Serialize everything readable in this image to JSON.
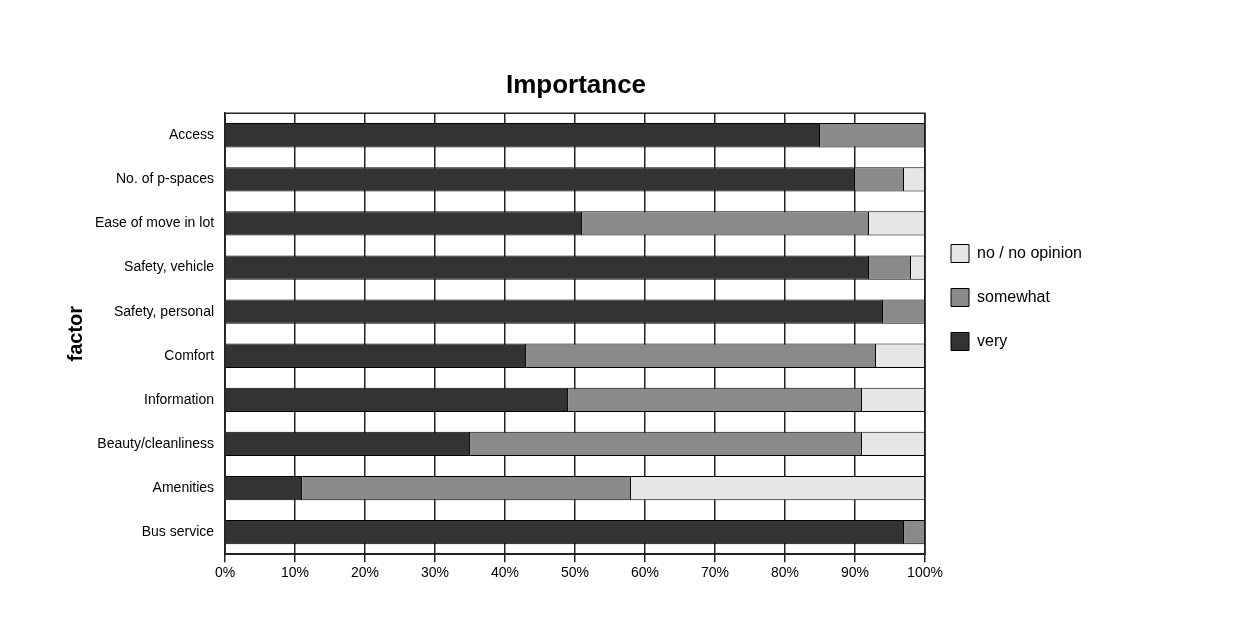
{
  "chart_data": {
    "type": "bar",
    "title": "Importance",
    "ylabel": "factor",
    "orientation": "horizontal",
    "stacked": true,
    "categories": [
      "Access",
      "No. of p-spaces",
      "Ease of move in lot",
      "Safety, vehicle",
      "Safety, personal",
      "Comfort",
      "Information",
      "Beauty/cleanliness",
      "Amenities",
      "Bus service"
    ],
    "series": [
      {
        "name": "very",
        "color": "#333333",
        "values": [
          85,
          90,
          51,
          92,
          94,
          43,
          49,
          35,
          11,
          97
        ]
      },
      {
        "name": "somewhat",
        "color": "#8a8a8a",
        "values": [
          15,
          7,
          41,
          6,
          6,
          50,
          42,
          56,
          47,
          3
        ]
      },
      {
        "name": "no / no opinion",
        "color": "#e6e6e6",
        "values": [
          0,
          3,
          8,
          2,
          0,
          7,
          9,
          9,
          42,
          0
        ]
      }
    ],
    "xlim": [
      0,
      100
    ],
    "xticks": [
      {
        "value": 0,
        "label": "0%"
      },
      {
        "value": 10,
        "label": "10%"
      },
      {
        "value": 20,
        "label": "20%"
      },
      {
        "value": 30,
        "label": "30%"
      },
      {
        "value": 40,
        "label": "40%"
      },
      {
        "value": 50,
        "label": "50%"
      },
      {
        "value": 60,
        "label": "60%"
      },
      {
        "value": 70,
        "label": "70%"
      },
      {
        "value": 80,
        "label": "80%"
      },
      {
        "value": 90,
        "label": "90%"
      },
      {
        "value": 100,
        "label": "100%"
      }
    ],
    "grid": "x",
    "legend": "right"
  }
}
